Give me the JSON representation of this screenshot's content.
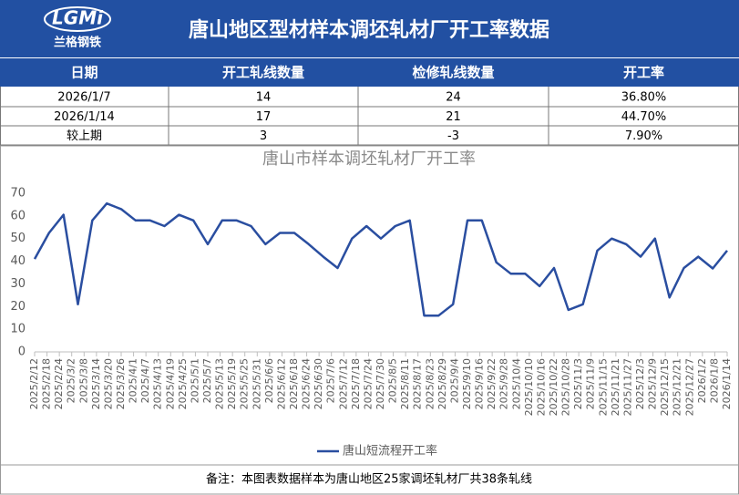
{
  "header": {
    "logo": "LGMi",
    "logo_sub": "兰格钢铁",
    "title": "唐山地区型材样本调坯轧材厂开工率数据"
  },
  "table": {
    "columns": [
      "日期",
      "开工轧线数量",
      "检修轧线数量",
      "开工率"
    ],
    "rows": [
      [
        "2026/1/7",
        "14",
        "24",
        "36.80%"
      ],
      [
        "2026/1/14",
        "17",
        "21",
        "44.70%"
      ],
      [
        "较上期",
        "3",
        "-3",
        "7.90%"
      ]
    ]
  },
  "chart_data": {
    "type": "line",
    "title": "唐山市样本调坯轧材厂开工率",
    "x": [
      "2025/2/12",
      "2025/2/19",
      "2025/2/26",
      "2025/3/5",
      "2025/3/12",
      "2025/3/19",
      "2025/3/26",
      "2025/4/2",
      "2025/4/9",
      "2025/4/16",
      "2025/4/23",
      "2025/4/30",
      "2025/5/7",
      "2025/5/14",
      "2025/5/21",
      "2025/5/28",
      "2025/6/4",
      "2025/6/11",
      "2025/6/18",
      "2025/6/25",
      "2025/7/2",
      "2025/7/9",
      "2025/7/16",
      "2025/7/23",
      "2025/7/30",
      "2025/8/6",
      "2025/8/13",
      "2025/8/20",
      "2025/8/27",
      "2025/9/3",
      "2025/9/10",
      "2025/9/17",
      "2025/9/24",
      "2025/10/1",
      "2025/10/8",
      "2025/10/15",
      "2025/10/22",
      "2025/10/29",
      "2025/11/5",
      "2025/11/12",
      "2025/11/19",
      "2025/11/26",
      "2025/12/3",
      "2025/12/10",
      "2025/12/17",
      "2025/12/24",
      "2025/12/31",
      "2026/1/7",
      "2026/1/14"
    ],
    "series": [
      {
        "name": "唐山短流程开工率",
        "color": "#2a4ea0",
        "values": [
          41,
          52.5,
          60.5,
          21,
          58,
          65.5,
          63,
          58,
          58,
          55.5,
          60.5,
          58,
          47.5,
          58,
          58,
          55.5,
          47.5,
          52.5,
          52.5,
          47.5,
          42,
          37,
          50,
          55.5,
          50,
          55.5,
          58,
          16,
          16,
          21,
          58,
          58,
          39.5,
          34.5,
          34.5,
          29,
          37,
          18.5,
          21,
          44.7,
          50,
          47.5,
          42,
          50,
          24,
          37,
          42,
          36.8,
          44.7
        ]
      }
    ],
    "xlim": [
      "2025/2/12",
      "2026/1/14"
    ],
    "xticks": [
      "2025/2/12",
      "2025/2/18",
      "2025/2/24",
      "2025/3/2",
      "2025/3/8",
      "2025/3/14",
      "2025/3/20",
      "2025/3/26",
      "2025/4/1",
      "2025/4/7",
      "2025/4/13",
      "2025/4/19",
      "2025/4/25",
      "2025/5/1",
      "2025/5/7",
      "2025/5/13",
      "2025/5/19",
      "2025/5/25",
      "2025/5/31",
      "2025/6/6",
      "2025/6/12",
      "2025/6/18",
      "2025/6/24",
      "2025/6/30",
      "2025/7/6",
      "2025/7/12",
      "2025/7/18",
      "2025/7/24",
      "2025/7/30",
      "2025/8/5",
      "2025/8/11",
      "2025/8/17",
      "2025/8/23",
      "2025/8/29",
      "2025/9/4",
      "2025/9/10",
      "2025/9/16",
      "2025/9/22",
      "2025/9/28",
      "2025/10/4",
      "2025/10/10",
      "2025/10/16",
      "2025/10/22",
      "2025/10/28",
      "2025/11/3",
      "2025/11/9",
      "2025/11/15",
      "2025/11/21",
      "2025/11/27",
      "2025/12/3",
      "2025/12/9",
      "2025/12/15",
      "2025/12/21",
      "2025/12/27",
      "2026/1/2",
      "2026/1/8",
      "2026/1/14"
    ],
    "ylim": [
      0,
      70
    ],
    "yticks": [
      0,
      10,
      20,
      30,
      40,
      50,
      60,
      70
    ],
    "grid": false,
    "legend": "bottom"
  },
  "footnote": "备注：本图表数据样本为唐山地区25家调坯轧材厂共38条轧线"
}
